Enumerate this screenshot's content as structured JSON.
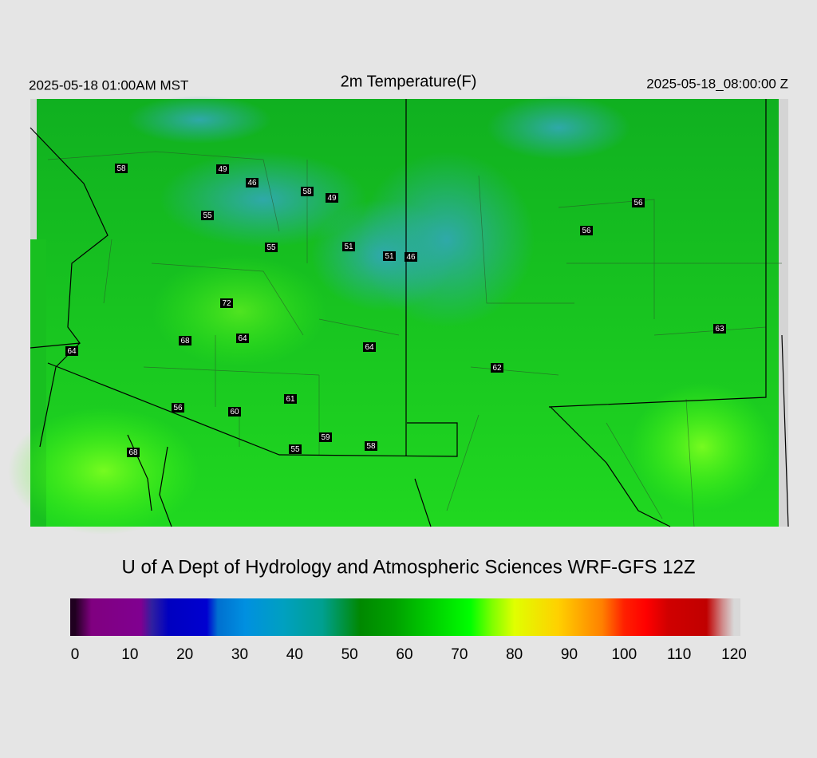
{
  "header": {
    "left": "2025-05-18 01:00AM MST",
    "title": "2m Temperature(F)",
    "right": "2025-05-18_08:00:00 Z"
  },
  "map": {
    "stations": [
      58,
      49,
      46,
      58,
      49,
      55,
      55,
      51,
      51,
      46,
      72,
      68,
      64,
      64,
      64,
      56,
      60,
      61,
      59,
      55,
      58,
      68,
      62,
      56,
      56,
      63
    ]
  },
  "credit": "U of A Dept of Hydrology and Atmospheric Sciences WRF-GFS 12Z",
  "colorbar": {
    "range": [
      0,
      120
    ],
    "ticks": [
      0,
      10,
      20,
      30,
      40,
      50,
      60,
      70,
      80,
      90,
      100,
      110,
      120
    ]
  }
}
